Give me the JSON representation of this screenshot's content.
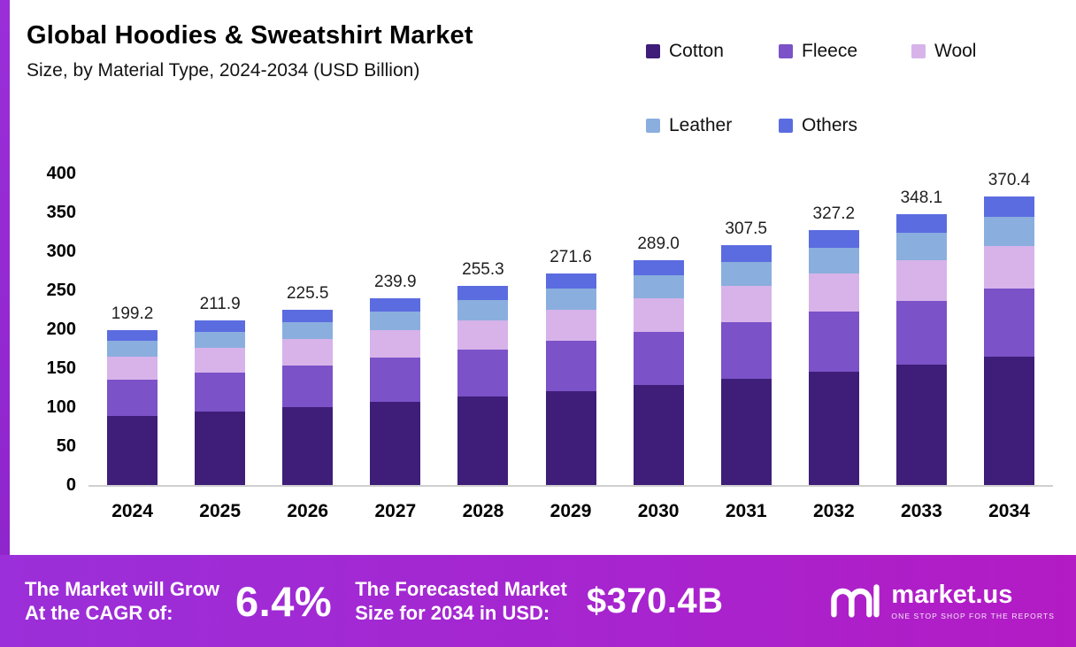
{
  "header": {
    "title": "Global Hoodies & Sweatshirt Market",
    "subtitle": "Size, by Material Type, 2024-2034 (USD Billion)"
  },
  "chart_data": {
    "type": "bar",
    "stacked": true,
    "title": "Global Hoodies & Sweatshirt Market",
    "subtitle": "Size, by Material Type, 2024-2034 (USD Billion)",
    "categories": [
      "2024",
      "2025",
      "2026",
      "2027",
      "2028",
      "2029",
      "2030",
      "2031",
      "2032",
      "2033",
      "2034"
    ],
    "totals": [
      199.2,
      211.9,
      225.5,
      239.9,
      255.3,
      271.6,
      289.0,
      307.5,
      327.2,
      348.1,
      370.4
    ],
    "series": [
      {
        "name": "Cotton",
        "color": "#3e1e78",
        "values": [
          88.6,
          94.3,
          100.3,
          106.8,
          113.6,
          120.9,
          128.6,
          136.8,
          145.6,
          154.9,
          164.8
        ]
      },
      {
        "name": "Fleece",
        "color": "#7b52c7",
        "values": [
          46.8,
          49.8,
          53.0,
          56.4,
          60.0,
          63.8,
          67.9,
          72.3,
          76.9,
          81.8,
          87.0
        ]
      },
      {
        "name": "Wool",
        "color": "#d7b3ea",
        "values": [
          29.9,
          31.8,
          33.8,
          36.0,
          38.3,
          40.7,
          43.4,
          46.1,
          49.1,
          52.2,
          55.6
        ]
      },
      {
        "name": "Leather",
        "color": "#8aaede",
        "values": [
          19.9,
          21.2,
          22.6,
          24.0,
          25.5,
          27.2,
          28.9,
          30.8,
          32.7,
          34.8,
          37.0
        ]
      },
      {
        "name": "Others",
        "color": "#5b6ce0",
        "values": [
          14.0,
          14.8,
          15.8,
          16.7,
          17.9,
          19.0,
          20.2,
          21.5,
          22.9,
          24.4,
          26.0
        ]
      }
    ],
    "ylim": [
      0,
      400
    ],
    "yticks": [
      0,
      50,
      100,
      150,
      200,
      250,
      300,
      350,
      400
    ],
    "xlabel": "",
    "ylabel": "",
    "grid": false,
    "legend_position": "top-right"
  },
  "banner": {
    "cagr_label_line1": "The Market will Grow",
    "cagr_label_line2": "At the CAGR of:",
    "cagr_value": "6.4%",
    "forecast_label_line1": "The Forecasted Market",
    "forecast_label_line2": "Size for 2034 in USD:",
    "forecast_value": "$370.4B",
    "brand_name": "market.us",
    "brand_tagline": "ONE STOP SHOP FOR THE REPORTS"
  }
}
